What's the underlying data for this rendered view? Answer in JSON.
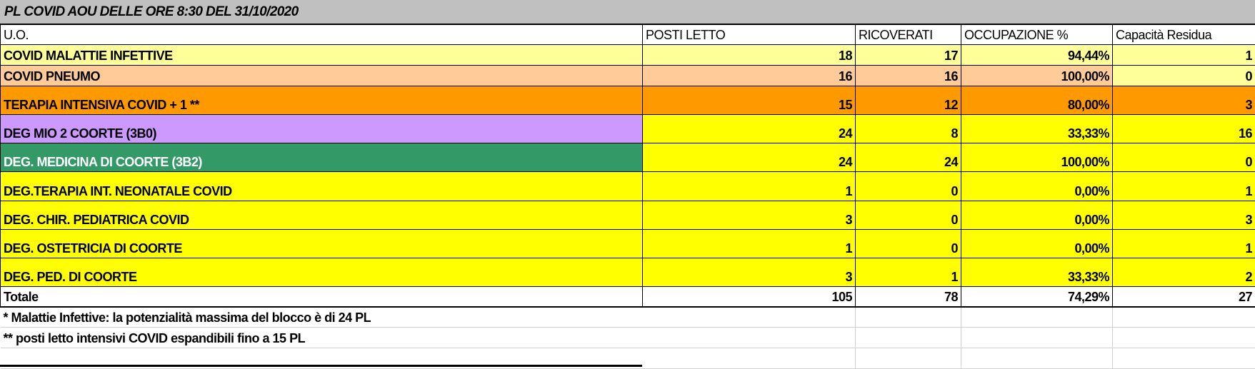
{
  "title": "PL COVID AOU DELLE ORE 8:30 DEL 31/10/2020",
  "headers": [
    "U.O.",
    "POSTI LETTO",
    "RICOVERATI",
    "OCCUPAZIONE %",
    "Capacità Residua"
  ],
  "rows": [
    {
      "uo": "COVID MALATTIE INFETTIVE",
      "posti": "18",
      "ricoverati": "17",
      "occupazione": "94,44%",
      "capacita": "1",
      "color_uo": "#FFFF99",
      "color_row": "#FFFF99",
      "color_cap": "#FFFF99",
      "text_color": "#000000"
    },
    {
      "uo": "COVID  PNEUMO",
      "posti": "16",
      "ricoverati": "16",
      "occupazione": "100,00%",
      "capacita": "0",
      "color_uo": "#FFCC99",
      "color_row": "#FFCC99",
      "color_cap": "#FFFF99",
      "text_color": "#000000"
    },
    {
      "uo": "TERAPIA INTENSIVA COVID + 1 **",
      "posti": "15",
      "ricoverati": "12",
      "occupazione": "80,00%",
      "capacita": "3",
      "color_uo": "#FF9900",
      "color_row": "#FF9900",
      "color_cap": "#FF9900",
      "text_color": "#000000"
    },
    {
      "uo": "DEG MIO 2 COORTE (3B0)",
      "posti": "24",
      "ricoverati": "8",
      "occupazione": "33,33%",
      "capacita": "16",
      "color_uo": "#CC99FF",
      "color_row": "#FFFF00",
      "color_cap": "#FFFF00",
      "text_color": "#000000"
    },
    {
      "uo": "DEG. MEDICINA DI COORTE (3B2)",
      "posti": "24",
      "ricoverati": "24",
      "occupazione": "100,00%",
      "capacita": "0",
      "color_uo": "#339966",
      "color_row": "#FFFF00",
      "color_cap": "#FFFF00",
      "text_color": "#FFFFFF"
    },
    {
      "uo": "DEG.TERAPIA INT. NEONATALE COVID",
      "posti": "1",
      "ricoverati": "0",
      "occupazione": "0,00%",
      "capacita": "1",
      "color_uo": "#FFFF00",
      "color_row": "#FFFF00",
      "color_cap": "#FFFF00",
      "text_color": "#000000"
    },
    {
      "uo": "DEG. CHIR. PEDIATRICA COVID",
      "posti": "3",
      "ricoverati": "0",
      "occupazione": "0,00%",
      "capacita": "3",
      "color_uo": "#FFFF00",
      "color_row": "#FFFF00",
      "color_cap": "#FFFF00",
      "text_color": "#000000"
    },
    {
      "uo": "DEG. OSTETRICIA DI COORTE",
      "posti": "1",
      "ricoverati": "0",
      "occupazione": "0,00%",
      "capacita": "1",
      "color_uo": "#FFFF00",
      "color_row": "#FFFF00",
      "color_cap": "#FFFF00",
      "text_color": "#000000"
    },
    {
      "uo": "DEG. PED. DI COORTE",
      "posti": "3",
      "ricoverati": "1",
      "occupazione": "33,33%",
      "capacita": "2",
      "color_uo": "#FFFF00",
      "color_row": "#FFFF00",
      "color_cap": "#FFFF00",
      "text_color": "#000000"
    }
  ],
  "totale": {
    "label": "Totale",
    "posti": "105",
    "ricoverati": "78",
    "occupazione": "74,29%",
    "capacita": "27"
  },
  "notes": [
    "*   Malattie Infettive: la potenzialità massima del blocco è di 24 PL",
    "** posti letto intensivi COVID espandibili fino a 15 PL"
  ]
}
